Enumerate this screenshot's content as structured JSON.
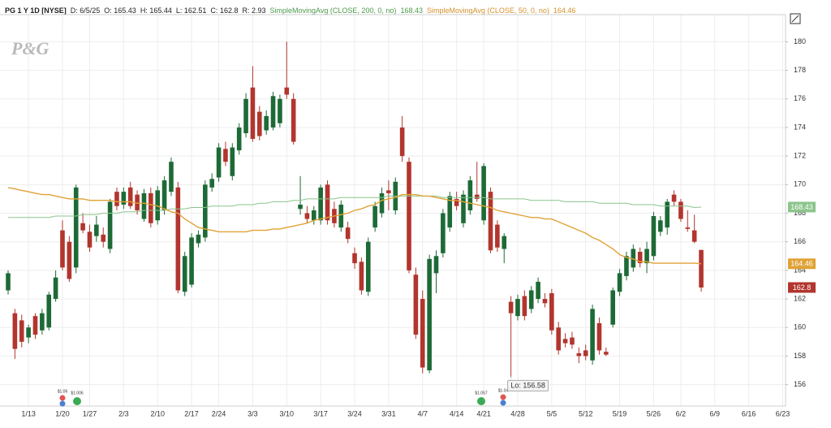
{
  "logo": "P&G",
  "header": {
    "symbol": "PG 1 Y 1D [NYSE]",
    "date_label": "D:",
    "date": "6/5/25",
    "open_label": "O:",
    "high_label": "H:",
    "low_label": "L:",
    "close_label": "C:",
    "range_label": "R:",
    "range": 2.93
  },
  "chart_data": {
    "type": "candlestick",
    "categories": [
      null,
      null,
      null,
      "1/13",
      null,
      null,
      null,
      null,
      "1/20",
      null,
      null,
      null,
      "1/27",
      null,
      null,
      null,
      null,
      "2/3",
      null,
      null,
      null,
      null,
      "2/10",
      null,
      null,
      null,
      null,
      "2/17",
      null,
      null,
      null,
      "2/24",
      null,
      null,
      null,
      null,
      "3/3",
      null,
      null,
      null,
      null,
      "3/10",
      null,
      null,
      null,
      null,
      "3/17",
      null,
      null,
      null,
      null,
      "3/24",
      null,
      null,
      null,
      null,
      "3/31",
      null,
      null,
      null,
      null,
      "4/7",
      null,
      null,
      null,
      null,
      "4/14",
      null,
      null,
      null,
      "4/21",
      null,
      null,
      null,
      null,
      "4/28",
      null,
      null,
      null,
      null,
      "5/5",
      null,
      null,
      null,
      null,
      "5/12",
      null,
      null,
      null,
      null,
      "5/19",
      null,
      null,
      null,
      null,
      "5/26",
      null,
      null,
      null,
      "6/2",
      null,
      null,
      null,
      null,
      "6/9",
      null,
      null,
      null,
      null,
      "6/16",
      null,
      null,
      null,
      null,
      "6/23"
    ],
    "ohlc": [
      [
        162.6,
        164.0,
        162.3,
        163.8
      ],
      [
        161.0,
        161.3,
        157.8,
        158.5
      ],
      [
        160.5,
        160.9,
        158.6,
        159.0
      ],
      [
        159.3,
        160.2,
        158.9,
        160.0
      ],
      [
        160.8,
        161.0,
        159.2,
        159.5
      ],
      [
        159.8,
        161.3,
        159.5,
        161.0
      ],
      [
        160.0,
        162.5,
        159.8,
        162.3
      ],
      [
        162.0,
        164.0,
        161.8,
        163.5
      ],
      [
        166.8,
        167.5,
        164.0,
        164.2
      ],
      [
        166.0,
        166.4,
        163.2,
        163.4
      ],
      [
        164.2,
        170.0,
        163.8,
        169.8
      ],
      [
        167.3,
        168.0,
        166.6,
        166.8
      ],
      [
        166.7,
        167.2,
        165.3,
        165.6
      ],
      [
        166.4,
        167.8,
        166.0,
        167.2
      ],
      [
        166.5,
        167.0,
        165.6,
        166.0
      ],
      [
        165.5,
        169.0,
        165.2,
        168.8
      ],
      [
        169.5,
        169.8,
        168.2,
        168.5
      ],
      [
        168.6,
        169.8,
        168.3,
        169.5
      ],
      [
        169.8,
        170.2,
        168.3,
        168.5
      ],
      [
        169.3,
        169.6,
        167.9,
        168.2
      ],
      [
        167.6,
        169.7,
        167.4,
        169.4
      ],
      [
        169.4,
        169.8,
        167.0,
        167.3
      ],
      [
        167.5,
        169.9,
        167.2,
        169.6
      ],
      [
        168.2,
        170.6,
        167.9,
        170.3
      ],
      [
        169.5,
        171.9,
        169.2,
        171.6
      ],
      [
        169.8,
        170.2,
        162.4,
        162.6
      ],
      [
        162.5,
        165.3,
        162.2,
        165.0
      ],
      [
        163.0,
        166.6,
        162.8,
        166.3
      ],
      [
        165.9,
        166.8,
        165.6,
        166.5
      ],
      [
        166.3,
        170.3,
        166.0,
        170.0
      ],
      [
        169.8,
        170.8,
        169.5,
        170.4
      ],
      [
        170.5,
        172.9,
        170.2,
        172.6
      ],
      [
        172.5,
        173.0,
        171.3,
        171.6
      ],
      [
        170.6,
        172.9,
        170.3,
        172.6
      ],
      [
        172.4,
        174.3,
        172.1,
        174.0
      ],
      [
        173.6,
        176.4,
        173.3,
        176.0
      ],
      [
        176.8,
        178.3,
        173.0,
        173.2
      ],
      [
        175.1,
        175.5,
        173.1,
        173.4
      ],
      [
        173.8,
        175.2,
        173.5,
        174.8
      ],
      [
        174.0,
        176.5,
        173.8,
        176.2
      ],
      [
        174.3,
        176.3,
        174.0,
        176.0
      ],
      [
        176.8,
        180.0,
        176.0,
        176.3
      ],
      [
        176.0,
        176.4,
        172.8,
        173.0
      ],
      [
        168.3,
        170.6,
        167.9,
        168.6
      ],
      [
        168.0,
        168.5,
        167.3,
        167.6
      ],
      [
        167.5,
        168.5,
        167.2,
        168.2
      ],
      [
        167.5,
        170.0,
        167.2,
        169.8
      ],
      [
        170.0,
        170.3,
        167.2,
        167.5
      ],
      [
        168.3,
        168.8,
        167.0,
        167.3
      ],
      [
        167.0,
        168.9,
        166.7,
        168.6
      ],
      [
        167.0,
        167.4,
        165.9,
        166.2
      ],
      [
        165.2,
        165.6,
        164.1,
        164.5
      ],
      [
        164.6,
        164.9,
        162.3,
        162.6
      ],
      [
        162.5,
        166.3,
        162.2,
        166.0
      ],
      [
        167.0,
        168.8,
        166.7,
        168.5
      ],
      [
        168.0,
        169.8,
        167.7,
        169.4
      ],
      [
        169.6,
        170.3,
        168.2,
        169.4
      ],
      [
        168.2,
        170.5,
        167.9,
        170.2
      ],
      [
        174.0,
        174.8,
        171.6,
        172.0
      ],
      [
        171.6,
        171.9,
        163.8,
        164.0
      ],
      [
        163.7,
        164.2,
        159.2,
        159.5
      ],
      [
        162.0,
        162.6,
        156.8,
        157.2
      ],
      [
        157.0,
        165.1,
        156.8,
        164.8
      ],
      [
        163.8,
        165.4,
        162.4,
        165.0
      ],
      [
        165.2,
        168.3,
        164.9,
        168.0
      ],
      [
        167.0,
        169.5,
        166.7,
        169.2
      ],
      [
        169.0,
        169.5,
        168.2,
        168.5
      ],
      [
        167.3,
        169.6,
        167.0,
        169.3
      ],
      [
        168.2,
        170.6,
        167.9,
        170.3
      ],
      [
        169.3,
        171.6,
        168.8,
        169.0
      ],
      [
        167.5,
        171.5,
        167.2,
        171.3
      ],
      [
        169.5,
        169.8,
        165.2,
        165.4
      ],
      [
        167.2,
        167.5,
        165.3,
        165.6
      ],
      [
        165.5,
        166.6,
        164.5,
        166.4
      ],
      [
        161.8,
        162.2,
        156.58,
        161.0
      ],
      [
        160.8,
        162.3,
        160.5,
        162.0
      ],
      [
        162.2,
        162.6,
        160.5,
        160.8
      ],
      [
        161.3,
        162.9,
        161.0,
        162.6
      ],
      [
        162.0,
        163.5,
        161.7,
        163.2
      ],
      [
        162.0,
        162.4,
        161.4,
        161.7
      ],
      [
        162.4,
        162.7,
        159.5,
        159.8
      ],
      [
        160.0,
        160.4,
        158.1,
        158.4
      ],
      [
        159.2,
        159.6,
        158.6,
        158.9
      ],
      [
        159.3,
        159.7,
        158.5,
        158.8
      ],
      [
        158.2,
        158.6,
        157.5,
        158.0
      ],
      [
        158.4,
        158.8,
        157.7,
        158.0
      ],
      [
        157.7,
        161.6,
        157.4,
        161.3
      ],
      [
        160.3,
        160.7,
        158.1,
        158.4
      ],
      [
        158.3,
        158.6,
        158.0,
        158.1
      ],
      [
        160.2,
        162.8,
        160.0,
        162.6
      ],
      [
        162.5,
        164.1,
        162.2,
        163.8
      ],
      [
        163.6,
        165.3,
        163.3,
        165.0
      ],
      [
        164.2,
        165.8,
        163.9,
        165.5
      ],
      [
        165.3,
        165.6,
        164.2,
        164.5
      ],
      [
        164.5,
        166.0,
        163.8,
        165.5
      ],
      [
        165.0,
        168.1,
        164.7,
        167.8
      ],
      [
        166.7,
        167.8,
        166.4,
        167.5
      ],
      [
        167.0,
        169.0,
        166.5,
        168.8
      ],
      [
        169.3,
        169.6,
        168.5,
        168.8
      ],
      [
        168.8,
        169.0,
        167.4,
        167.6
      ],
      [
        167.0,
        168.2,
        166.7,
        166.9
      ],
      [
        166.8,
        167.9,
        165.9,
        166.0
      ],
      [
        165.43,
        165.44,
        162.51,
        162.8
      ],
      null,
      null,
      null,
      null,
      null,
      null,
      null,
      null,
      null,
      null,
      null,
      null
    ],
    "up_color": "#1d6a36",
    "down_color": "#b2352e",
    "series": [
      {
        "name": "SimpleMovingAvg (CLOSE, 200, 0, no)",
        "color": "#8cc58c",
        "values": [
          167.7,
          167.7,
          167.7,
          167.7,
          167.7,
          167.7,
          167.7,
          167.8,
          167.8,
          167.8,
          167.8,
          167.9,
          167.9,
          167.9,
          168.0,
          168.0,
          168.0,
          168.1,
          168.1,
          168.1,
          168.2,
          168.2,
          168.2,
          168.2,
          168.3,
          168.3,
          168.3,
          168.4,
          168.4,
          168.4,
          168.5,
          168.5,
          168.5,
          168.5,
          168.6,
          168.6,
          168.6,
          168.7,
          168.7,
          168.8,
          168.8,
          168.8,
          168.9,
          168.9,
          169.0,
          169.0,
          169.0,
          169.0,
          169.0,
          169.1,
          169.1,
          169.1,
          169.1,
          169.1,
          169.1,
          169.1,
          169.2,
          169.2,
          169.2,
          169.2,
          169.2,
          169.2,
          169.2,
          169.2,
          169.1,
          169.1,
          169.1,
          169.1,
          169.1,
          169.1,
          169.1,
          169.0,
          169.0,
          169.0,
          169.0,
          169.0,
          169.0,
          168.9,
          168.9,
          168.9,
          168.9,
          168.9,
          168.8,
          168.8,
          168.8,
          168.8,
          168.8,
          168.7,
          168.7,
          168.7,
          168.7,
          168.7,
          168.6,
          168.6,
          168.6,
          168.6,
          168.5,
          168.5,
          168.5,
          168.5,
          168.5,
          168.4,
          168.43,
          null,
          null,
          null,
          null,
          null,
          null,
          null,
          null,
          null,
          null,
          null,
          null
        ]
      },
      {
        "name": "SimpleMovingAvg (CLOSE, 50, 0, no)",
        "color": "#e0a236",
        "values": [
          169.8,
          169.7,
          169.6,
          169.5,
          169.4,
          169.3,
          169.3,
          169.2,
          169.1,
          169.0,
          169.0,
          169.0,
          168.9,
          168.9,
          168.9,
          168.9,
          168.8,
          168.8,
          168.8,
          168.7,
          168.7,
          168.6,
          168.5,
          168.3,
          168.1,
          168.0,
          167.6,
          167.3,
          167.0,
          166.9,
          166.8,
          166.7,
          166.7,
          166.7,
          166.7,
          166.7,
          166.8,
          166.8,
          166.8,
          166.9,
          166.9,
          167.0,
          167.1,
          167.2,
          167.3,
          167.5,
          167.6,
          167.7,
          167.8,
          167.9,
          168.0,
          168.2,
          168.3,
          168.5,
          168.6,
          168.9,
          169.0,
          169.1,
          169.3,
          169.3,
          169.3,
          169.2,
          169.2,
          169.1,
          169.0,
          168.9,
          168.9,
          168.8,
          168.7,
          168.6,
          168.5,
          168.4,
          168.2,
          168.1,
          168.0,
          167.9,
          167.8,
          167.7,
          167.7,
          167.6,
          167.6,
          167.4,
          167.2,
          167.0,
          166.8,
          166.6,
          166.3,
          166.1,
          165.8,
          165.5,
          165.1,
          164.9,
          164.8,
          164.6,
          164.6,
          164.5,
          164.5,
          164.5,
          164.5,
          164.5,
          164.5,
          164.5,
          164.46,
          null,
          null,
          null,
          null,
          null,
          null,
          null,
          null,
          null,
          null,
          null,
          null
        ]
      }
    ],
    "ylim": [
      154.5,
      181.9
    ],
    "yticks": [
      156,
      158,
      160,
      162,
      164,
      166,
      168,
      170,
      172,
      174,
      176,
      178,
      180
    ],
    "grid": true,
    "low_label": "Lo:",
    "events": [
      {
        "label": "$1.06"
      },
      {
        "label": "$1.006"
      },
      {
        "label": "$1.057"
      },
      {
        "label": "$1.04"
      }
    ]
  }
}
